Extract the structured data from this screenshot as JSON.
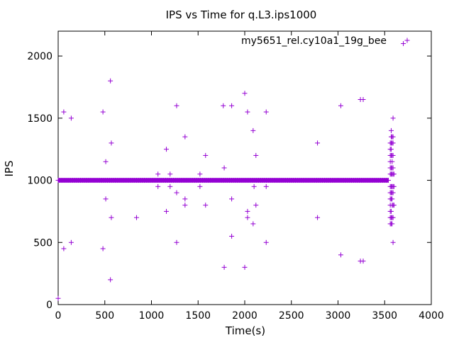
{
  "chart_data": {
    "type": "scatter",
    "title": "IPS vs Time for q.L3.ips1000",
    "xlabel": "Time(s)",
    "ylabel": "IPS",
    "xlim": [
      0,
      4000
    ],
    "ylim": [
      0,
      2200
    ],
    "xticks": [
      0,
      500,
      1000,
      1500,
      2000,
      2500,
      3000,
      3500,
      4000
    ],
    "yticks": [
      0,
      500,
      1000,
      1500,
      2000
    ],
    "grid": false,
    "legend_position": "top-right",
    "series": [
      {
        "name": "my5651_rel.cy10a1_19g_bee",
        "color": "#9400d3",
        "marker": "plus",
        "baseline": {
          "y": 1000,
          "x_start": 0,
          "x_end": 3540
        },
        "points": [
          [
            0,
            50
          ],
          [
            60,
            1550
          ],
          [
            60,
            450
          ],
          [
            140,
            1500
          ],
          [
            140,
            500
          ],
          [
            480,
            1550
          ],
          [
            480,
            450
          ],
          [
            510,
            1150
          ],
          [
            510,
            850
          ],
          [
            560,
            1800
          ],
          [
            560,
            200
          ],
          [
            570,
            1300
          ],
          [
            570,
            700
          ],
          [
            840,
            700
          ],
          [
            1070,
            1050
          ],
          [
            1070,
            950
          ],
          [
            1160,
            1250
          ],
          [
            1160,
            750
          ],
          [
            1200,
            1050
          ],
          [
            1200,
            950
          ],
          [
            1270,
            1600
          ],
          [
            1270,
            500
          ],
          [
            1270,
            900
          ],
          [
            1360,
            1350
          ],
          [
            1360,
            850
          ],
          [
            1360,
            800
          ],
          [
            1520,
            1050
          ],
          [
            1520,
            950
          ],
          [
            1580,
            1200
          ],
          [
            1580,
            800
          ],
          [
            1770,
            1600
          ],
          [
            1780,
            1100
          ],
          [
            1780,
            300
          ],
          [
            1860,
            1600
          ],
          [
            1860,
            850
          ],
          [
            1860,
            550
          ],
          [
            2000,
            1700
          ],
          [
            2000,
            300
          ],
          [
            2030,
            1550
          ],
          [
            2030,
            750
          ],
          [
            2030,
            700
          ],
          [
            2090,
            1400
          ],
          [
            2090,
            650
          ],
          [
            2100,
            950
          ],
          [
            2120,
            1200
          ],
          [
            2120,
            800
          ],
          [
            2230,
            1550
          ],
          [
            2230,
            950
          ],
          [
            2230,
            500
          ],
          [
            2780,
            1300
          ],
          [
            2780,
            700
          ],
          [
            3030,
            1600
          ],
          [
            3030,
            400
          ],
          [
            3240,
            1650
          ],
          [
            3240,
            350
          ],
          [
            3270,
            1650
          ],
          [
            3270,
            350
          ],
          [
            3560,
            1300
          ],
          [
            3560,
            1250
          ],
          [
            3560,
            1200
          ],
          [
            3560,
            1150
          ],
          [
            3560,
            1100
          ],
          [
            3560,
            1050
          ],
          [
            3560,
            950
          ],
          [
            3560,
            900
          ],
          [
            3560,
            850
          ],
          [
            3560,
            800
          ],
          [
            3560,
            750
          ],
          [
            3560,
            700
          ],
          [
            3560,
            650
          ],
          [
            3570,
            1400
          ],
          [
            3570,
            1350
          ],
          [
            3570,
            1300
          ],
          [
            3570,
            1250
          ],
          [
            3570,
            1200
          ],
          [
            3570,
            1100
          ],
          [
            3570,
            1050
          ],
          [
            3570,
            950
          ],
          [
            3570,
            900
          ],
          [
            3570,
            850
          ],
          [
            3570,
            750
          ],
          [
            3570,
            700
          ],
          [
            3570,
            650
          ],
          [
            3580,
            1350
          ],
          [
            3580,
            1300
          ],
          [
            3580,
            1200
          ],
          [
            3580,
            1150
          ],
          [
            3580,
            1100
          ],
          [
            3580,
            1050
          ],
          [
            3580,
            950
          ],
          [
            3580,
            900
          ],
          [
            3580,
            850
          ],
          [
            3580,
            800
          ],
          [
            3580,
            700
          ],
          [
            3580,
            650
          ],
          [
            3590,
            1500
          ],
          [
            3590,
            1350
          ],
          [
            3590,
            1300
          ],
          [
            3590,
            1200
          ],
          [
            3590,
            1100
          ],
          [
            3590,
            1050
          ],
          [
            3590,
            950
          ],
          [
            3590,
            900
          ],
          [
            3590,
            800
          ],
          [
            3590,
            700
          ],
          [
            3590,
            500
          ],
          [
            3600,
            1050
          ],
          [
            3600,
            950
          ],
          [
            3600,
            800
          ],
          [
            3700,
            2100
          ]
        ]
      }
    ]
  }
}
